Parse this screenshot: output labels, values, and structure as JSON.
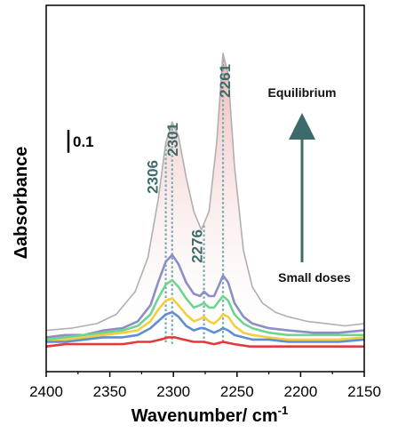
{
  "chart_data": {
    "type": "line",
    "xlabel": "Wavenumber/ cm",
    "xlabel_sup": "-1",
    "ylabel": "Δabsorbance",
    "xlim": [
      2400,
      2150
    ],
    "x_reversed": true,
    "ylim": [
      -0.15,
      1.45
    ],
    "y_ticks_shown": false,
    "x_ticks": [
      2400,
      2350,
      2300,
      2250,
      2200,
      2150
    ],
    "x_tick_labels": [
      "2400",
      "2350",
      "2300",
      "2250",
      "2200",
      "2150"
    ],
    "scale_bar": {
      "label": "0.1",
      "value": 0.1
    },
    "annotations": {
      "top": "Equilibrium",
      "bottom": "Small doses"
    },
    "peaks": [
      {
        "label": "2306",
        "x": 2306
      },
      {
        "label": "2301",
        "x": 2301
      },
      {
        "label": "2276",
        "x": 2276
      },
      {
        "label": "2261",
        "x": 2261
      }
    ],
    "series": [
      {
        "color": "#b0b0b0",
        "fill": "#e8a8a8",
        "offset": 0.0,
        "points": [
          [
            2400,
            0.03
          ],
          [
            2380,
            0.04
          ],
          [
            2360,
            0.06
          ],
          [
            2345,
            0.1
          ],
          [
            2330,
            0.2
          ],
          [
            2320,
            0.35
          ],
          [
            2312,
            0.6
          ],
          [
            2306,
            0.85
          ],
          [
            2301,
            0.94
          ],
          [
            2296,
            0.88
          ],
          [
            2290,
            0.7
          ],
          [
            2284,
            0.55
          ],
          [
            2278,
            0.47
          ],
          [
            2272,
            0.55
          ],
          [
            2266,
            0.85
          ],
          [
            2261,
            1.24
          ],
          [
            2257,
            1.15
          ],
          [
            2252,
            0.75
          ],
          [
            2245,
            0.38
          ],
          [
            2238,
            0.22
          ],
          [
            2230,
            0.15
          ],
          [
            2220,
            0.11
          ],
          [
            2210,
            0.09
          ],
          [
            2195,
            0.07
          ],
          [
            2180,
            0.06
          ],
          [
            2165,
            0.05
          ],
          [
            2150,
            0.06
          ]
        ]
      },
      {
        "color": "#8b8fc4",
        "offset": 0.0,
        "points": [
          [
            2400,
            0.0
          ],
          [
            2385,
            0.01
          ],
          [
            2370,
            0.01
          ],
          [
            2355,
            0.03
          ],
          [
            2340,
            0.04
          ],
          [
            2328,
            0.07
          ],
          [
            2318,
            0.14
          ],
          [
            2312,
            0.24
          ],
          [
            2306,
            0.33
          ],
          [
            2301,
            0.36
          ],
          [
            2296,
            0.32
          ],
          [
            2290,
            0.24
          ],
          [
            2284,
            0.19
          ],
          [
            2279,
            0.18
          ],
          [
            2276,
            0.2
          ],
          [
            2272,
            0.18
          ],
          [
            2268,
            0.18
          ],
          [
            2264,
            0.23
          ],
          [
            2261,
            0.27
          ],
          [
            2257,
            0.24
          ],
          [
            2252,
            0.15
          ],
          [
            2245,
            0.09
          ],
          [
            2238,
            0.06
          ],
          [
            2225,
            0.04
          ],
          [
            2210,
            0.03
          ],
          [
            2190,
            0.02
          ],
          [
            2170,
            0.02
          ],
          [
            2150,
            0.03
          ]
        ]
      },
      {
        "color": "#6fd48f",
        "offset": 0.0,
        "points": [
          [
            2400,
            -0.01
          ],
          [
            2385,
            0.0
          ],
          [
            2370,
            0.01
          ],
          [
            2355,
            0.02
          ],
          [
            2340,
            0.03
          ],
          [
            2328,
            0.05
          ],
          [
            2318,
            0.1
          ],
          [
            2312,
            0.17
          ],
          [
            2306,
            0.23
          ],
          [
            2301,
            0.25
          ],
          [
            2296,
            0.22
          ],
          [
            2290,
            0.17
          ],
          [
            2284,
            0.13
          ],
          [
            2279,
            0.14
          ],
          [
            2276,
            0.15
          ],
          [
            2272,
            0.13
          ],
          [
            2268,
            0.13
          ],
          [
            2264,
            0.16
          ],
          [
            2261,
            0.18
          ],
          [
            2257,
            0.16
          ],
          [
            2252,
            0.1
          ],
          [
            2245,
            0.06
          ],
          [
            2238,
            0.04
          ],
          [
            2225,
            0.02
          ],
          [
            2210,
            0.01
          ],
          [
            2190,
            0.01
          ],
          [
            2170,
            0.01
          ],
          [
            2150,
            0.01
          ]
        ]
      },
      {
        "color": "#f2cf3f",
        "offset": 0.0,
        "points": [
          [
            2400,
            -0.02
          ],
          [
            2385,
            -0.01
          ],
          [
            2370,
            0.0
          ],
          [
            2355,
            0.01
          ],
          [
            2340,
            0.02
          ],
          [
            2328,
            0.03
          ],
          [
            2318,
            0.07
          ],
          [
            2312,
            0.12
          ],
          [
            2306,
            0.16
          ],
          [
            2301,
            0.17
          ],
          [
            2296,
            0.14
          ],
          [
            2290,
            0.1
          ],
          [
            2284,
            0.07
          ],
          [
            2279,
            0.08
          ],
          [
            2276,
            0.09
          ],
          [
            2272,
            0.07
          ],
          [
            2268,
            0.06
          ],
          [
            2264,
            0.08
          ],
          [
            2261,
            0.1
          ],
          [
            2257,
            0.09
          ],
          [
            2252,
            0.05
          ],
          [
            2245,
            0.02
          ],
          [
            2238,
            0.01
          ],
          [
            2225,
            0.0
          ],
          [
            2210,
            -0.01
          ],
          [
            2190,
            -0.01
          ],
          [
            2170,
            -0.01
          ],
          [
            2150,
            0.0
          ]
        ]
      },
      {
        "color": "#5f8fd0",
        "offset": 0.0,
        "points": [
          [
            2400,
            -0.02
          ],
          [
            2385,
            -0.02
          ],
          [
            2370,
            -0.01
          ],
          [
            2355,
            0.0
          ],
          [
            2340,
            0.0
          ],
          [
            2328,
            0.01
          ],
          [
            2318,
            0.04
          ],
          [
            2312,
            0.07
          ],
          [
            2306,
            0.1
          ],
          [
            2301,
            0.11
          ],
          [
            2296,
            0.09
          ],
          [
            2290,
            0.05
          ],
          [
            2284,
            0.03
          ],
          [
            2279,
            0.04
          ],
          [
            2276,
            0.04
          ],
          [
            2272,
            0.03
          ],
          [
            2268,
            0.02
          ],
          [
            2264,
            0.03
          ],
          [
            2261,
            0.04
          ],
          [
            2257,
            0.03
          ],
          [
            2252,
            0.01
          ],
          [
            2245,
            0.0
          ],
          [
            2238,
            -0.01
          ],
          [
            2225,
            -0.01
          ],
          [
            2210,
            -0.02
          ],
          [
            2190,
            -0.02
          ],
          [
            2170,
            -0.02
          ],
          [
            2150,
            -0.01
          ]
        ]
      },
      {
        "color": "#e03a3a",
        "offset": 0.0,
        "points": [
          [
            2400,
            -0.04
          ],
          [
            2385,
            -0.03
          ],
          [
            2370,
            -0.03
          ],
          [
            2355,
            -0.03
          ],
          [
            2340,
            -0.03
          ],
          [
            2328,
            -0.02
          ],
          [
            2318,
            -0.02
          ],
          [
            2310,
            -0.01
          ],
          [
            2304,
            0.0
          ],
          [
            2299,
            0.0
          ],
          [
            2292,
            -0.01
          ],
          [
            2284,
            -0.02
          ],
          [
            2276,
            -0.02
          ],
          [
            2268,
            -0.03
          ],
          [
            2261,
            -0.02
          ],
          [
            2252,
            -0.03
          ],
          [
            2240,
            -0.04
          ],
          [
            2225,
            -0.04
          ],
          [
            2210,
            -0.04
          ],
          [
            2190,
            -0.04
          ],
          [
            2170,
            -0.04
          ],
          [
            2150,
            -0.04
          ]
        ]
      }
    ]
  }
}
